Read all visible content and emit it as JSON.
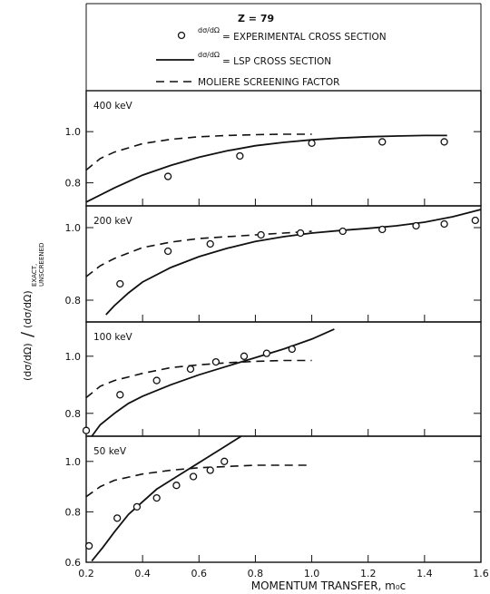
{
  "chart_data": {
    "type": "scatter",
    "x_ticks": [
      "0.2",
      "0.4",
      "0.6",
      "0.8",
      "1.0",
      "1.2",
      "1.4",
      "1.6"
    ],
    "xlim": [
      0.2,
      1.6
    ],
    "xlabel": "MOMENTUM TRANSFER, m₀c",
    "ylabel_main": "(dσ/dΩ)",
    "ylabel_denominator": "(dσ/dΩ)",
    "ylabel_subscript_top": "EXACT,",
    "ylabel_subscript_bottom": "UNSCREENED",
    "legend": {
      "z_label": "Z = 79",
      "items": [
        {
          "kind": "circle",
          "frac": "dσ/dΩ",
          "text": "= EXPERIMENTAL CROSS SECTION"
        },
        {
          "kind": "solid",
          "frac": "dσ/dΩ",
          "text": "= LSP CROSS SECTION"
        },
        {
          "kind": "dashed",
          "frac": "",
          "text": "MOLIERE SCREENING FACTOR"
        }
      ]
    },
    "panels": [
      {
        "label": "400 keV",
        "ylim": [
          0.71,
          1.16
        ],
        "y_ticks": [
          "1.0",
          "0.8"
        ],
        "y_tick_values": [
          1.0,
          0.8
        ],
        "experimental": [
          [
            0.49,
            0.825
          ],
          [
            0.745,
            0.905
          ],
          [
            1.0,
            0.955
          ],
          [
            1.25,
            0.96
          ],
          [
            1.47,
            0.96
          ]
        ],
        "lsp": [
          [
            0.2,
            0.725
          ],
          [
            0.3,
            0.78
          ],
          [
            0.4,
            0.83
          ],
          [
            0.5,
            0.868
          ],
          [
            0.6,
            0.9
          ],
          [
            0.7,
            0.925
          ],
          [
            0.8,
            0.945
          ],
          [
            0.9,
            0.958
          ],
          [
            1.0,
            0.968
          ],
          [
            1.1,
            0.975
          ],
          [
            1.2,
            0.98
          ],
          [
            1.3,
            0.983
          ],
          [
            1.4,
            0.985
          ],
          [
            1.48,
            0.985
          ]
        ],
        "moliere": [
          [
            0.2,
            0.85
          ],
          [
            0.25,
            0.895
          ],
          [
            0.3,
            0.92
          ],
          [
            0.4,
            0.953
          ],
          [
            0.5,
            0.97
          ],
          [
            0.6,
            0.98
          ],
          [
            0.7,
            0.985
          ],
          [
            0.8,
            0.988
          ],
          [
            0.9,
            0.99
          ],
          [
            1.0,
            0.99
          ]
        ]
      },
      {
        "label": "200 keV",
        "ylim": [
          0.74,
          1.06
        ],
        "y_ticks": [
          "1.0",
          "0.8"
        ],
        "y_tick_values": [
          1.0,
          0.8
        ],
        "experimental": [
          [
            0.32,
            0.845
          ],
          [
            0.49,
            0.935
          ],
          [
            0.64,
            0.955
          ],
          [
            0.82,
            0.98
          ],
          [
            0.96,
            0.985
          ],
          [
            1.11,
            0.99
          ],
          [
            1.25,
            0.995
          ],
          [
            1.37,
            1.005
          ],
          [
            1.47,
            1.01
          ],
          [
            1.58,
            1.02
          ]
        ],
        "lsp": [
          [
            0.27,
            0.76
          ],
          [
            0.3,
            0.785
          ],
          [
            0.35,
            0.82
          ],
          [
            0.4,
            0.85
          ],
          [
            0.5,
            0.89
          ],
          [
            0.6,
            0.92
          ],
          [
            0.7,
            0.943
          ],
          [
            0.8,
            0.962
          ],
          [
            0.9,
            0.975
          ],
          [
            1.0,
            0.985
          ],
          [
            1.1,
            0.992
          ],
          [
            1.2,
            0.998
          ],
          [
            1.3,
            1.005
          ],
          [
            1.4,
            1.015
          ],
          [
            1.5,
            1.03
          ],
          [
            1.6,
            1.05
          ]
        ],
        "moliere": [
          [
            0.2,
            0.865
          ],
          [
            0.25,
            0.895
          ],
          [
            0.3,
            0.915
          ],
          [
            0.4,
            0.945
          ],
          [
            0.5,
            0.96
          ],
          [
            0.6,
            0.97
          ],
          [
            0.7,
            0.975
          ],
          [
            0.8,
            0.98
          ],
          [
            0.9,
            0.985
          ],
          [
            1.0,
            0.99
          ]
        ]
      },
      {
        "label": "100 keV",
        "ylim": [
          0.72,
          1.12
        ],
        "y_ticks": [
          "1.0",
          "0.8"
        ],
        "y_tick_values": [
          1.0,
          0.8
        ],
        "experimental": [
          [
            0.2,
            0.74
          ],
          [
            0.32,
            0.865
          ],
          [
            0.45,
            0.915
          ],
          [
            0.57,
            0.955
          ],
          [
            0.66,
            0.98
          ],
          [
            0.76,
            1.0
          ],
          [
            0.84,
            1.01
          ],
          [
            0.93,
            1.025
          ]
        ],
        "lsp": [
          [
            0.22,
            0.72
          ],
          [
            0.25,
            0.76
          ],
          [
            0.3,
            0.8
          ],
          [
            0.35,
            0.835
          ],
          [
            0.4,
            0.86
          ],
          [
            0.5,
            0.9
          ],
          [
            0.6,
            0.935
          ],
          [
            0.7,
            0.965
          ],
          [
            0.8,
            0.995
          ],
          [
            0.9,
            1.025
          ],
          [
            1.0,
            1.06
          ],
          [
            1.08,
            1.095
          ]
        ],
        "moliere": [
          [
            0.2,
            0.855
          ],
          [
            0.25,
            0.895
          ],
          [
            0.3,
            0.915
          ],
          [
            0.4,
            0.94
          ],
          [
            0.5,
            0.96
          ],
          [
            0.6,
            0.97
          ],
          [
            0.7,
            0.977
          ],
          [
            0.8,
            0.982
          ],
          [
            0.9,
            0.985
          ],
          [
            1.0,
            0.985
          ]
        ]
      },
      {
        "label": "50 keV",
        "ylim": [
          0.6,
          1.1
        ],
        "y_ticks": [
          "1.0",
          "0.8",
          "0.6"
        ],
        "y_tick_values": [
          1.0,
          0.8,
          0.6
        ],
        "experimental": [
          [
            0.21,
            0.665
          ],
          [
            0.31,
            0.775
          ],
          [
            0.38,
            0.82
          ],
          [
            0.45,
            0.855
          ],
          [
            0.52,
            0.905
          ],
          [
            0.58,
            0.94
          ],
          [
            0.64,
            0.965
          ],
          [
            0.69,
            1.0
          ]
        ],
        "lsp": [
          [
            0.22,
            0.605
          ],
          [
            0.26,
            0.66
          ],
          [
            0.3,
            0.72
          ],
          [
            0.35,
            0.79
          ],
          [
            0.4,
            0.84
          ],
          [
            0.45,
            0.89
          ],
          [
            0.5,
            0.925
          ],
          [
            0.55,
            0.96
          ],
          [
            0.6,
            0.995
          ],
          [
            0.65,
            1.03
          ],
          [
            0.7,
            1.065
          ],
          [
            0.75,
            1.1
          ]
        ],
        "moliere": [
          [
            0.2,
            0.86
          ],
          [
            0.25,
            0.9
          ],
          [
            0.3,
            0.925
          ],
          [
            0.4,
            0.95
          ],
          [
            0.5,
            0.965
          ],
          [
            0.6,
            0.975
          ],
          [
            0.7,
            0.98
          ],
          [
            0.8,
            0.985
          ],
          [
            0.9,
            0.985
          ],
          [
            1.0,
            0.985
          ]
        ]
      }
    ]
  }
}
